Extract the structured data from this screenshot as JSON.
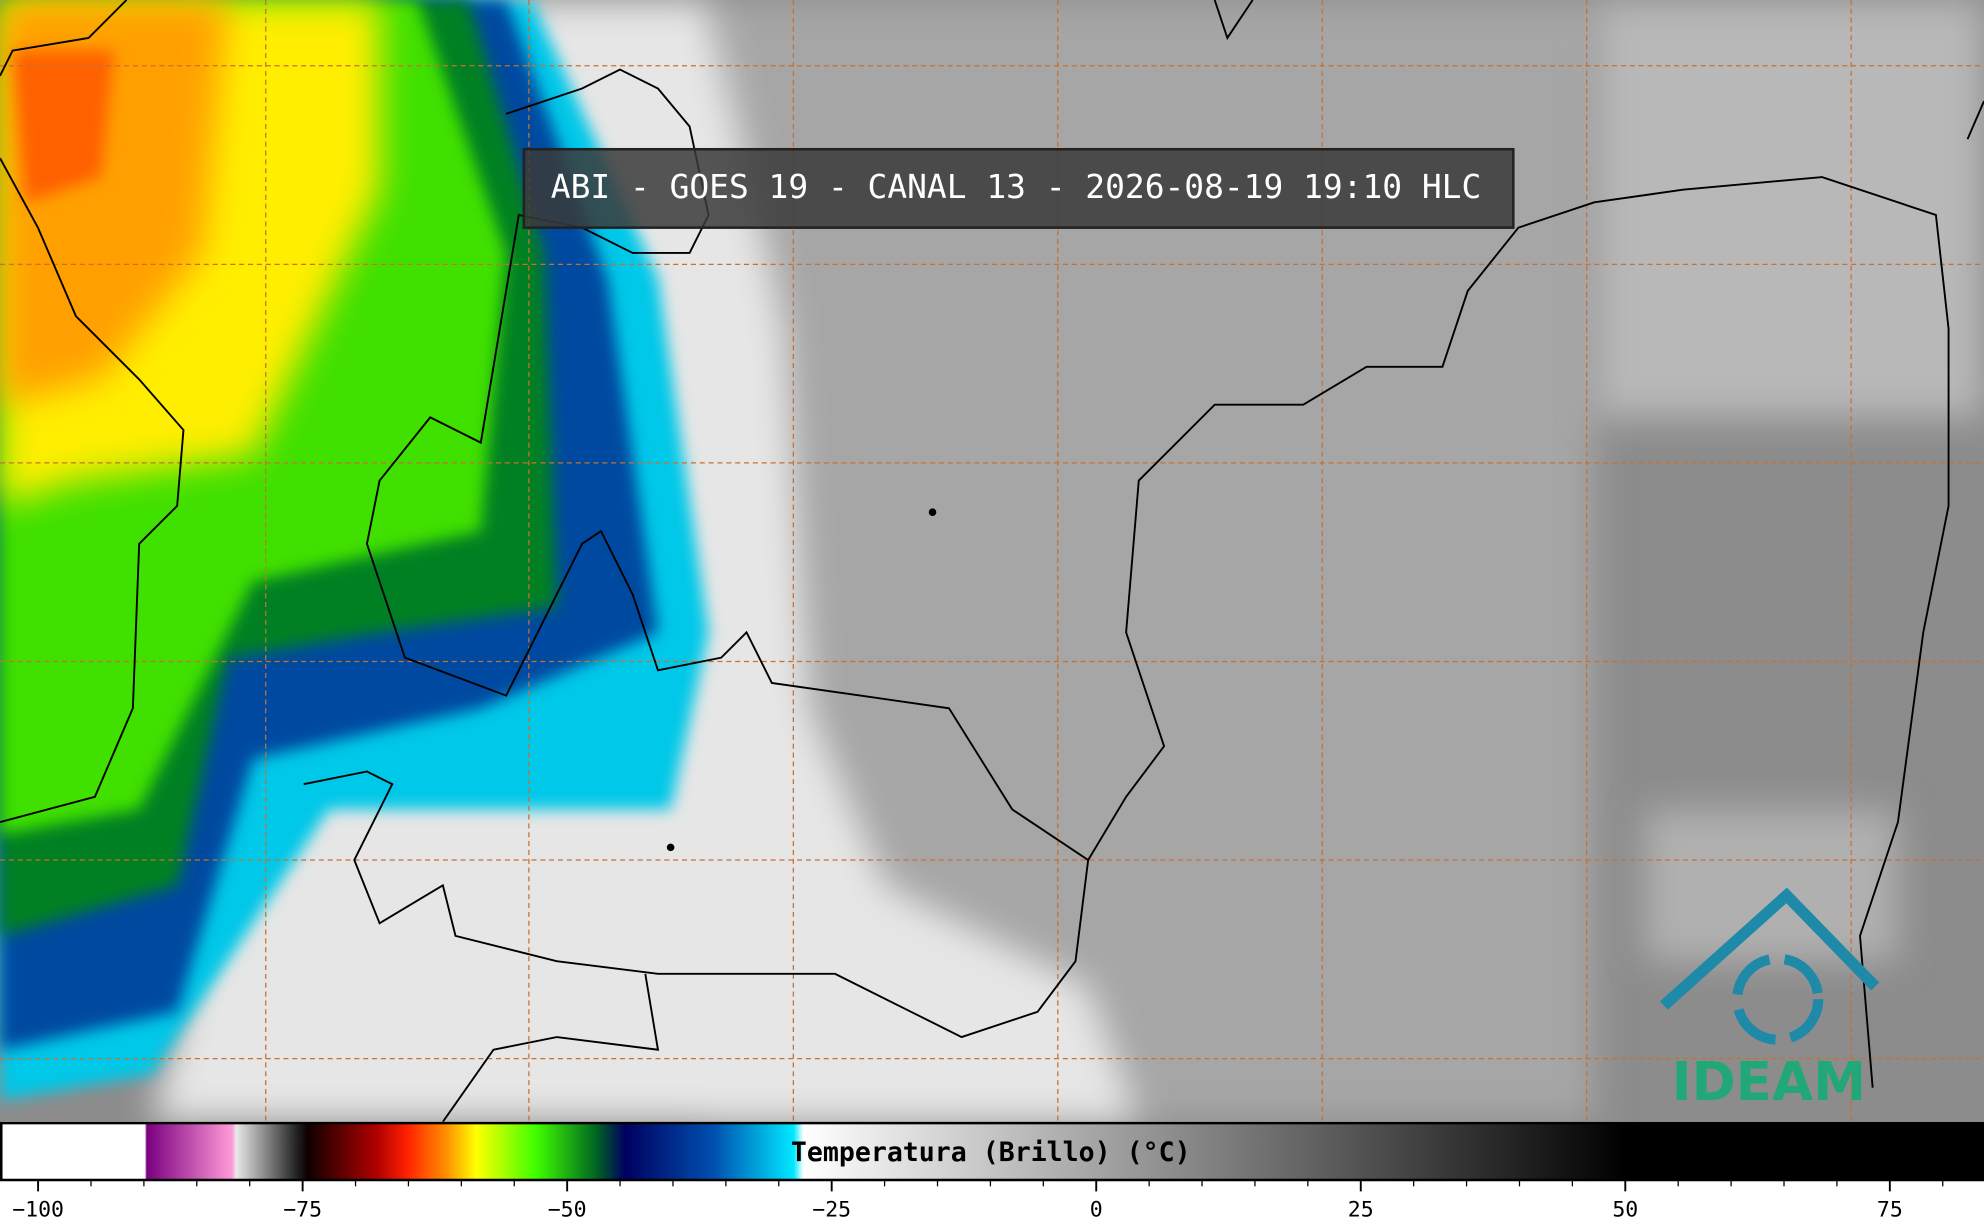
{
  "header": {
    "title": "ABI - GOES 19 - CANAL 13 - 2026-08-19 19:10 HLC"
  },
  "logo": {
    "text": "IDEAM"
  },
  "chart_data": {
    "type": "colorbar",
    "title": "Temperatura (Brillo) (°C)",
    "xlim": [
      -103.6,
      83.9
    ],
    "xticks": [
      {
        "value": -100,
        "label": "−100"
      },
      {
        "value": -75,
        "label": "−75"
      },
      {
        "value": -50,
        "label": "−50"
      },
      {
        "value": -25,
        "label": "−25"
      },
      0,
      25,
      50,
      75
    ],
    "minor_ticks": [
      -95,
      -90,
      -85,
      -80,
      -70,
      -65,
      -60,
      -55,
      -45,
      -40,
      -35,
      -30,
      -20,
      -15,
      -10,
      -5,
      5,
      10,
      15,
      20,
      30,
      35,
      40,
      45,
      55,
      60,
      65,
      70,
      80
    ]
  }
}
